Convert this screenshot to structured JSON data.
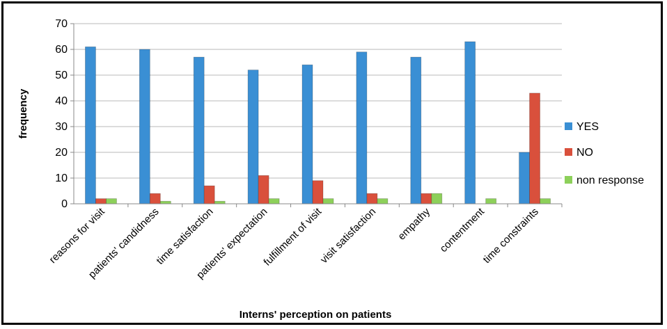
{
  "chart_data": {
    "type": "bar",
    "title": "",
    "xlabel": "Interns' perception on patients",
    "ylabel": "frequency",
    "ylim": [
      0,
      70
    ],
    "yticks": [
      0,
      10,
      20,
      30,
      40,
      50,
      60,
      70
    ],
    "grid": true,
    "legend_position": "right",
    "categories": [
      "reasons for visit",
      "patients' candidness",
      "time satisfaction",
      "patients' expectation",
      "fulfillment of visit",
      "visit satisfaction",
      "empathy",
      "contentment",
      "time constraints"
    ],
    "series": [
      {
        "name": "YES",
        "color": "#3a8fd4",
        "values": [
          61,
          60,
          57,
          52,
          54,
          59,
          57,
          63,
          20
        ]
      },
      {
        "name": "NO",
        "color": "#d9503c",
        "values": [
          2,
          4,
          7,
          11,
          9,
          4,
          4,
          0,
          43
        ]
      },
      {
        "name": "non response",
        "color": "#8dd05a",
        "values": [
          2,
          1,
          1,
          2,
          2,
          2,
          4,
          2,
          2
        ]
      }
    ]
  }
}
